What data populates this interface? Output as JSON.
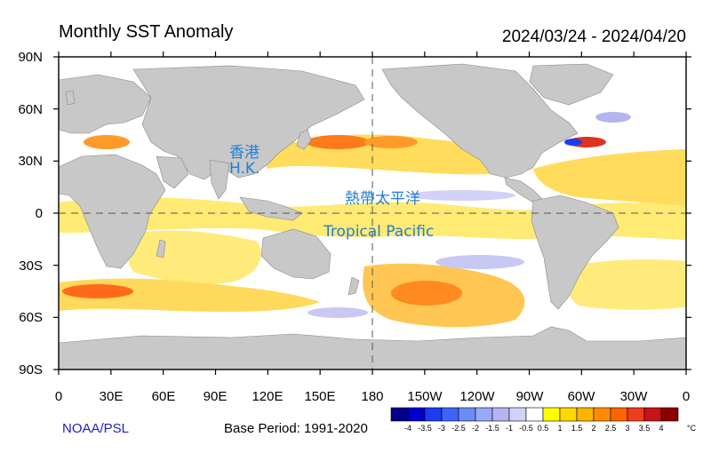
{
  "header": {
    "title": "Monthly SST Anomaly",
    "period": "2024/03/24 - 2024/04/20"
  },
  "map": {
    "y_ticks": [
      "90N",
      "60N",
      "30N",
      "0",
      "30S",
      "60S",
      "90S"
    ],
    "x_ticks": [
      "0",
      "30E",
      "60E",
      "90E",
      "120E",
      "150E",
      "180",
      "150W",
      "120W",
      "90W",
      "60W",
      "30W",
      "0"
    ],
    "annotations": {
      "hk_chinese": "香港",
      "hk_english": "H.K.",
      "tropical_chinese": "熱帶太平洋",
      "tropical_english": "Tropical Pacific"
    },
    "land_color": "#c8c8c8",
    "ocean_neutral_color": "#ffffff"
  },
  "footer": {
    "credit": "NOAA/PSL",
    "base_period": "Base Period: 1991-2020"
  },
  "colorbar": {
    "unit": "°C",
    "labels": [
      "-4",
      "-3.5",
      "-3",
      "-2.5",
      "-2",
      "-1.5",
      "-1",
      "-0.5",
      "0.5",
      "1",
      "1.5",
      "2",
      "2.5",
      "3",
      "3.5",
      "4"
    ],
    "colors": [
      "#00008b",
      "#0000cd",
      "#1c3cf0",
      "#3c64f5",
      "#6a8cf5",
      "#96aaf5",
      "#b4b4f0",
      "#d2d2f8",
      "#ffffff",
      "#ffff00",
      "#ffd700",
      "#ffb400",
      "#ff8c00",
      "#ff6400",
      "#f03c1e",
      "#c81414",
      "#8b0000"
    ]
  }
}
